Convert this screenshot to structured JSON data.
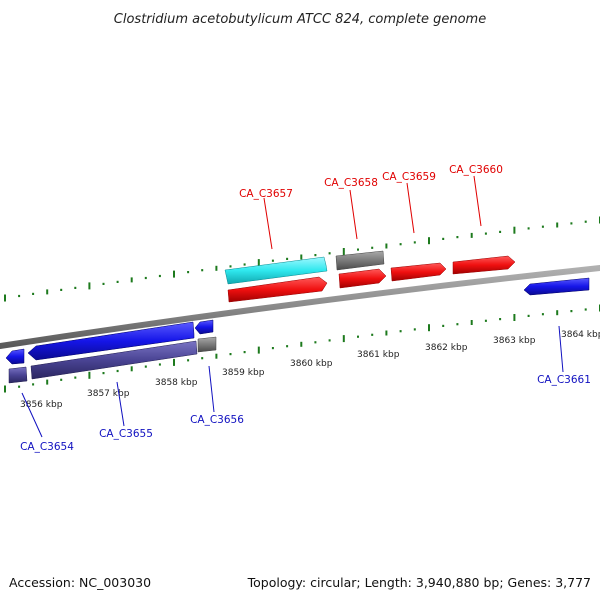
{
  "title": "Clostridium acetobutylicum ATCC 824, complete genome",
  "footer": {
    "accession": "Accession: NC_003030",
    "summary": "Topology: circular; Length: 3,940,880 bp; Genes: 3,777"
  },
  "colors": {
    "backbone": "#8a8a8a",
    "ticks": "#1d7a1d",
    "forward_label": "#e00000",
    "reverse_label": "#1010c0",
    "forward_gene": "#f01010",
    "forward_rna": "#2fe8ee",
    "reverse_gene": "#1515e8",
    "reverse_cds": "#4a4494",
    "other": "#7a7a7a"
  },
  "axis": {
    "unit": "kbp",
    "ticks": [
      "3856 kbp",
      "3857 kbp",
      "3858 kbp",
      "3859 kbp",
      "3860 kbp",
      "3861 kbp",
      "3862 kbp",
      "3863 kbp",
      "3864 kbp"
    ]
  },
  "genes": [
    {
      "label": "CA_C3654",
      "strand": "reverse"
    },
    {
      "label": "CA_C3655",
      "strand": "reverse"
    },
    {
      "label": "CA_C3656",
      "strand": "reverse"
    },
    {
      "label": "CA_C3657",
      "strand": "forward"
    },
    {
      "label": "CA_C3658",
      "strand": "forward"
    },
    {
      "label": "CA_C3659",
      "strand": "forward"
    },
    {
      "label": "CA_C3660",
      "strand": "forward"
    },
    {
      "label": "CA_C3661",
      "strand": "reverse"
    }
  ]
}
